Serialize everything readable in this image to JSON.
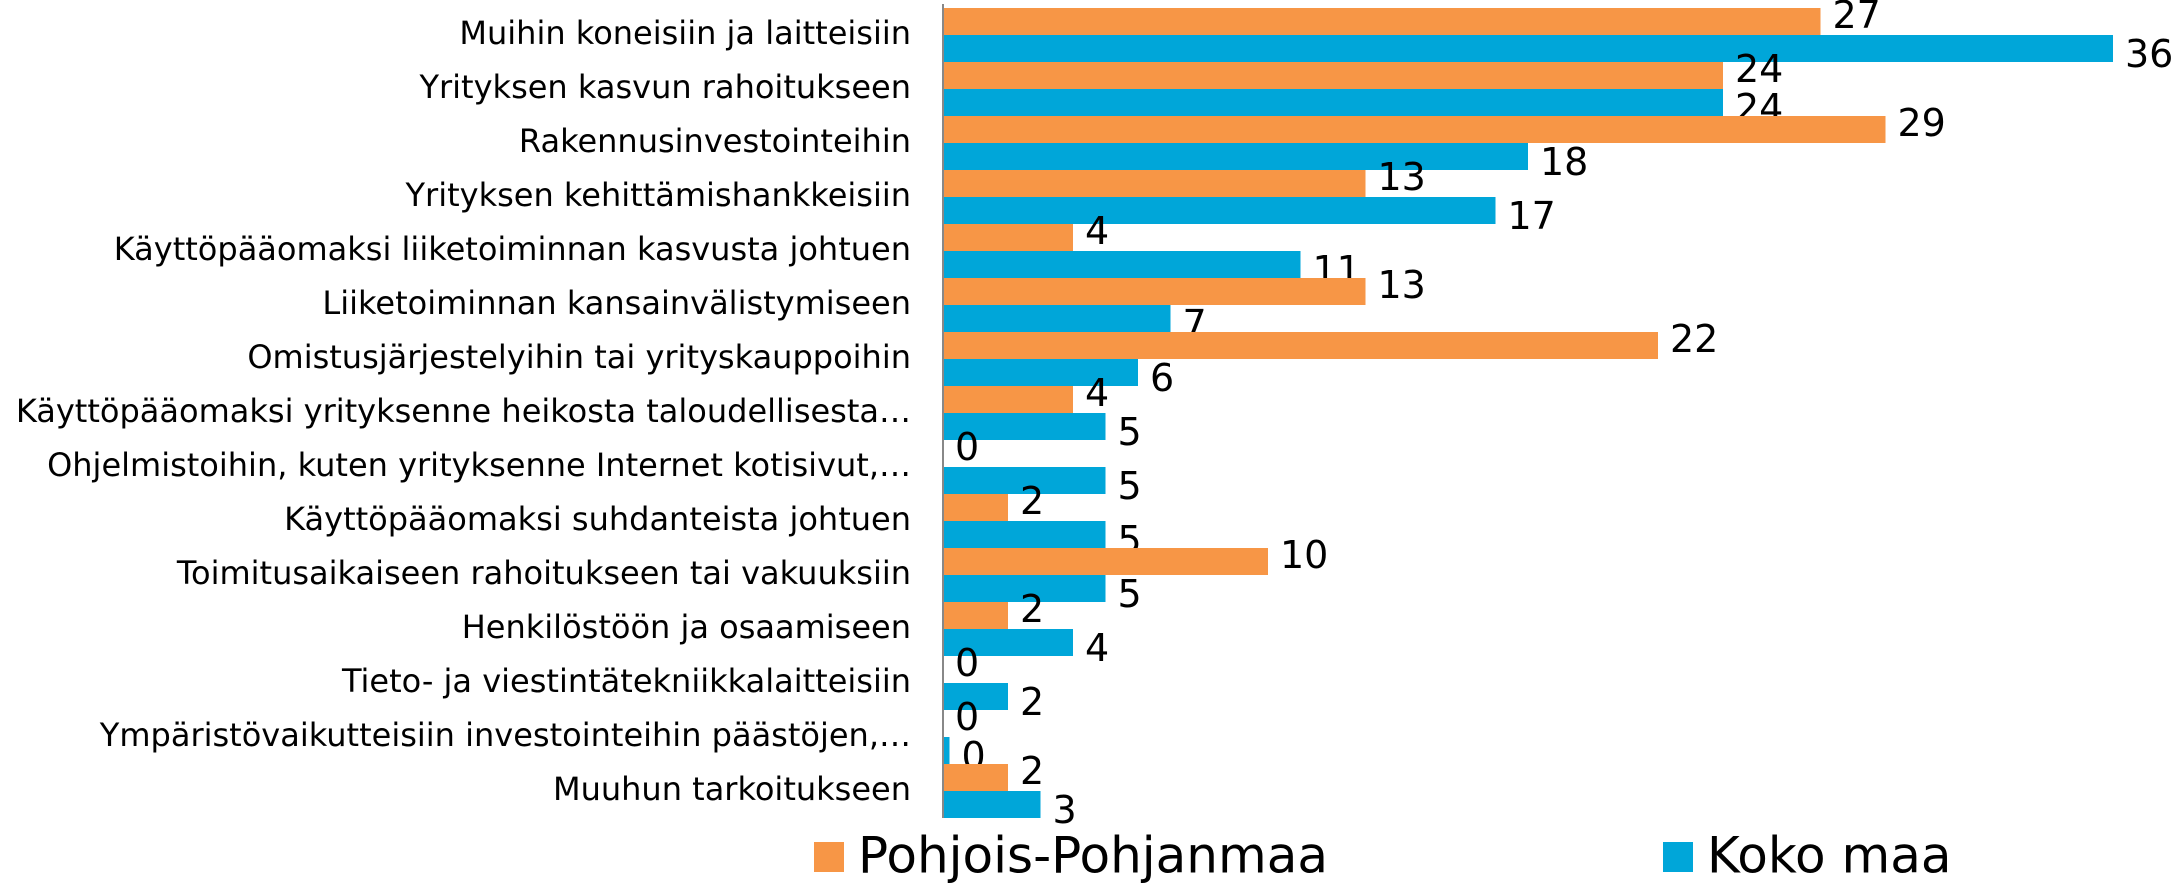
{
  "chart_data": {
    "type": "bar",
    "orientation": "horizontal",
    "categories": [
      "Muihin koneisiin ja laitteisiin",
      "Yrityksen kasvun rahoitukseen",
      "Rakennusinvestointeihin",
      "Yrityksen kehittämishankkeisiin",
      "Käyttöpääomaksi liiketoiminnan kasvusta johtuen",
      "Liiketoiminnan kansainvälistymiseen",
      "Omistusjärjestelyihin tai yrityskauppoihin",
      "Käyttöpääomaksi yrityksenne heikosta taloudellisesta…",
      "Ohjelmistoihin, kuten yrityksenne Internet kotisivut,…",
      "Käyttöpääomaksi suhdanteista johtuen",
      "Toimitusaikaiseen rahoitukseen tai vakuuksiin",
      "Henkilöstöön ja osaamiseen",
      "Tieto- ja viestintätekniikkalaitteisiin",
      "Ympäristövaikutteisiin investointeihin päästöjen,…",
      "Muuhun tarkoitukseen"
    ],
    "series": [
      {
        "name": "Pohjois-Pohjanmaa",
        "color": "#f79646",
        "values": [
          27,
          24,
          29,
          13,
          4,
          13,
          22,
          4,
          0,
          2,
          10,
          2,
          0,
          0,
          2
        ]
      },
      {
        "name": "Koko maa",
        "color": "#00a6d9",
        "values": [
          36,
          24,
          18,
          17,
          11,
          7,
          6,
          5,
          5,
          5,
          5,
          4,
          2,
          0.2,
          3
        ],
        "value_labels": [
          "36",
          "24",
          "18",
          "17",
          "11",
          "7",
          "6",
          "5",
          "5",
          "5",
          "5",
          "4",
          "2",
          "0",
          "3"
        ]
      }
    ],
    "xlim": [
      0,
      38
    ],
    "legend": "bottom"
  }
}
